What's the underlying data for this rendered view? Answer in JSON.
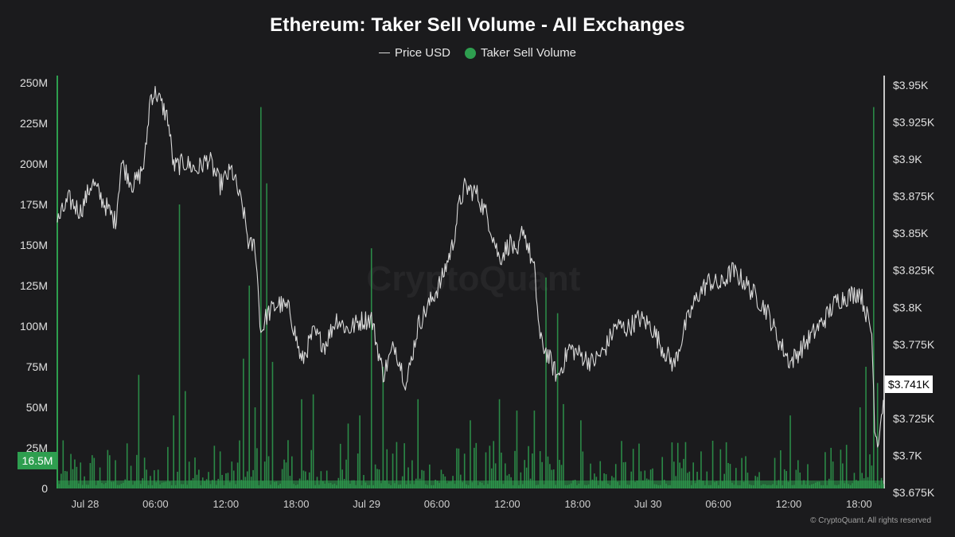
{
  "chart_data": {
    "type": "bar",
    "title": "Ethereum: Taker Sell Volume - All Exchanges",
    "legend": [
      {
        "name": "Price USD",
        "marker": "line",
        "color": "#d9d9d9"
      },
      {
        "name": "Taker Sell Volume",
        "marker": "dot",
        "color": "#2e9e4f"
      }
    ],
    "x_ticks": [
      "Jul 28",
      "06:00",
      "12:00",
      "18:00",
      "Jul 29",
      "06:00",
      "12:00",
      "18:00",
      "Jul 30",
      "06:00",
      "12:00",
      "18:00"
    ],
    "x_range": {
      "start": "2024-07-27T21:00",
      "end": "2024-07-30T20:00",
      "interval_minutes": 10
    },
    "left_axis": {
      "ticks": [
        "0",
        "25M",
        "50M",
        "75M",
        "100M",
        "125M",
        "150M",
        "175M",
        "200M",
        "225M",
        "250M"
      ],
      "range": [
        0,
        250000000
      ]
    },
    "right_axis": {
      "ticks": [
        "$3.675K",
        "$3.7K",
        "$3.725K",
        "$3.75K",
        "$3.775K",
        "$3.8K",
        "$3.825K",
        "$3.85K",
        "$3.875K",
        "$3.9K",
        "$3.925K",
        "$3.95K"
      ],
      "range": [
        3675,
        3950
      ]
    },
    "series": [
      {
        "name": "Price USD",
        "type": "line",
        "color": "#d9d9d9",
        "points": [
          [
            "2024-07-27T21:00",
            3855
          ],
          [
            "2024-07-27T22:00",
            3870
          ],
          [
            "2024-07-27T23:00",
            3862
          ],
          [
            "2024-07-28T00:00",
            3882
          ],
          [
            "2024-07-28T01:00",
            3868
          ],
          [
            "2024-07-28T02:00",
            3855
          ],
          [
            "2024-07-28T02:30",
            3895
          ],
          [
            "2024-07-28T03:30",
            3880
          ],
          [
            "2024-07-28T04:00",
            3885
          ],
          [
            "2024-07-28T04:30",
            3895
          ],
          [
            "2024-07-28T05:00",
            3940
          ],
          [
            "2024-07-28T05:30",
            3942
          ],
          [
            "2024-07-28T06:30",
            3925
          ],
          [
            "2024-07-28T07:00",
            3892
          ],
          [
            "2024-07-28T08:00",
            3895
          ],
          [
            "2024-07-28T09:00",
            3890
          ],
          [
            "2024-07-28T10:00",
            3898
          ],
          [
            "2024-07-28T11:00",
            3880
          ],
          [
            "2024-07-28T12:00",
            3890
          ],
          [
            "2024-07-28T13:00",
            3862
          ],
          [
            "2024-07-28T13:30",
            3838
          ],
          [
            "2024-07-28T14:00",
            3840
          ],
          [
            "2024-07-28T14:30",
            3780
          ],
          [
            "2024-07-28T15:00",
            3792
          ],
          [
            "2024-07-28T16:00",
            3800
          ],
          [
            "2024-07-28T17:00",
            3795
          ],
          [
            "2024-07-28T18:00",
            3760
          ],
          [
            "2024-07-28T19:00",
            3780
          ],
          [
            "2024-07-28T20:00",
            3772
          ],
          [
            "2024-07-28T21:00",
            3790
          ],
          [
            "2024-07-28T22:00",
            3782
          ],
          [
            "2024-07-28T23:00",
            3788
          ],
          [
            "2024-07-29T00:00",
            3790
          ],
          [
            "2024-07-29T01:00",
            3752
          ],
          [
            "2024-07-29T02:00",
            3772
          ],
          [
            "2024-07-29T03:00",
            3745
          ],
          [
            "2024-07-29T04:00",
            3785
          ],
          [
            "2024-07-29T05:00",
            3800
          ],
          [
            "2024-07-29T06:00",
            3815
          ],
          [
            "2024-07-29T07:00",
            3840
          ],
          [
            "2024-07-29T07:30",
            3865
          ],
          [
            "2024-07-29T08:00",
            3878
          ],
          [
            "2024-07-29T09:00",
            3875
          ],
          [
            "2024-07-29T10:00",
            3858
          ],
          [
            "2024-07-29T11:00",
            3830
          ],
          [
            "2024-07-29T12:00",
            3842
          ],
          [
            "2024-07-29T12:30",
            3828
          ],
          [
            "2024-07-29T13:00",
            3852
          ],
          [
            "2024-07-29T14:00",
            3822
          ],
          [
            "2024-07-29T14:30",
            3775
          ],
          [
            "2024-07-29T15:00",
            3768
          ],
          [
            "2024-07-29T16:00",
            3750
          ],
          [
            "2024-07-29T17:00",
            3770
          ],
          [
            "2024-07-29T18:00",
            3765
          ],
          [
            "2024-07-29T19:00",
            3760
          ],
          [
            "2024-07-29T20:00",
            3768
          ],
          [
            "2024-07-29T21:00",
            3785
          ],
          [
            "2024-07-29T22:00",
            3783
          ],
          [
            "2024-07-29T23:00",
            3790
          ],
          [
            "2024-07-30T00:00",
            3785
          ],
          [
            "2024-07-30T01:00",
            3770
          ],
          [
            "2024-07-30T02:00",
            3758
          ],
          [
            "2024-07-30T03:00",
            3785
          ],
          [
            "2024-07-30T04:00",
            3805
          ],
          [
            "2024-07-30T05:00",
            3815
          ],
          [
            "2024-07-30T06:00",
            3812
          ],
          [
            "2024-07-30T07:00",
            3822
          ],
          [
            "2024-07-30T08:00",
            3815
          ],
          [
            "2024-07-30T09:00",
            3805
          ],
          [
            "2024-07-30T10:00",
            3795
          ],
          [
            "2024-07-30T11:00",
            3775
          ],
          [
            "2024-07-30T12:00",
            3760
          ],
          [
            "2024-07-30T13:00",
            3770
          ],
          [
            "2024-07-30T14:00",
            3780
          ],
          [
            "2024-07-30T15:00",
            3790
          ],
          [
            "2024-07-30T16:00",
            3802
          ],
          [
            "2024-07-30T17:00",
            3805
          ],
          [
            "2024-07-30T18:00",
            3808
          ],
          [
            "2024-07-30T19:00",
            3780
          ],
          [
            "2024-07-30T19:15",
            3720
          ],
          [
            "2024-07-30T19:30",
            3705
          ],
          [
            "2024-07-30T20:00",
            3735
          ]
        ]
      },
      {
        "name": "Taker Sell Volume",
        "type": "bar",
        "color": "#2e9e4f",
        "spikes": [
          [
            "2024-07-27T21:00",
            250000000
          ],
          [
            "2024-07-28T04:00",
            70000000
          ],
          [
            "2024-07-28T07:00",
            45000000
          ],
          [
            "2024-07-28T07:30",
            175000000
          ],
          [
            "2024-07-28T08:00",
            60000000
          ],
          [
            "2024-07-28T13:00",
            80000000
          ],
          [
            "2024-07-28T13:30",
            125000000
          ],
          [
            "2024-07-28T14:00",
            50000000
          ],
          [
            "2024-07-28T14:30",
            235000000
          ],
          [
            "2024-07-28T15:00",
            188000000
          ],
          [
            "2024-07-28T15:30",
            78000000
          ],
          [
            "2024-07-28T18:00",
            55000000
          ],
          [
            "2024-07-28T19:00",
            58000000
          ],
          [
            "2024-07-28T22:00",
            40000000
          ],
          [
            "2024-07-28T23:00",
            45000000
          ],
          [
            "2024-07-29T00:00",
            148000000
          ],
          [
            "2024-07-29T01:00",
            75000000
          ],
          [
            "2024-07-29T04:00",
            55000000
          ],
          [
            "2024-07-29T08:30",
            42000000
          ],
          [
            "2024-07-29T11:00",
            55000000
          ],
          [
            "2024-07-29T12:30",
            48000000
          ],
          [
            "2024-07-29T14:00",
            48000000
          ],
          [
            "2024-07-29T15:00",
            130000000
          ],
          [
            "2024-07-29T16:00",
            108000000
          ],
          [
            "2024-07-29T16:30",
            52000000
          ],
          [
            "2024-07-29T18:00",
            42000000
          ],
          [
            "2024-07-30T12:00",
            45000000
          ],
          [
            "2024-07-30T18:00",
            50000000
          ],
          [
            "2024-07-30T18:30",
            75000000
          ],
          [
            "2024-07-30T19:15",
            235000000
          ],
          [
            "2024-07-30T19:30",
            65000000
          ]
        ]
      }
    ],
    "current_values": {
      "price_label": "$3.741K",
      "volume_label": "16.5M"
    },
    "grid": false,
    "legend_position": "top-center",
    "watermark": "CryptoQuant"
  },
  "footer": {
    "copyright": "© CryptoQuant. All rights reserved"
  }
}
